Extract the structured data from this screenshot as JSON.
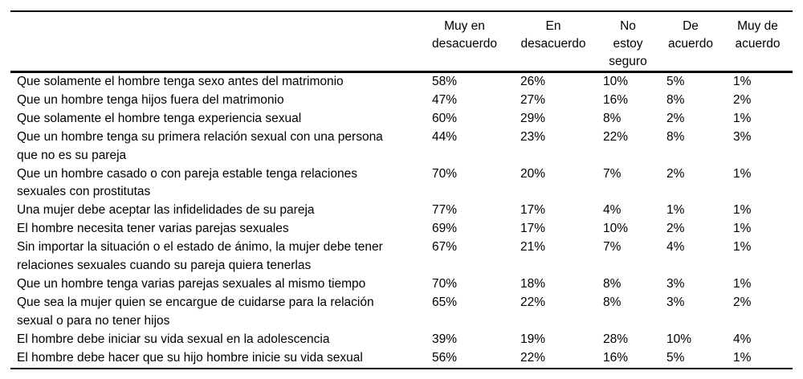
{
  "table": {
    "columns": [
      "Muy en\ndesacuerdo",
      "En\ndesacuerdo",
      "No\nestoy\nseguro",
      "De\nacuerdo",
      "Muy de\nacuerdo"
    ],
    "rows": [
      {
        "label": "Que solamente el hombre tenga sexo antes del matrimonio",
        "values": [
          "58%",
          "26%",
          "10%",
          "5%",
          "1%"
        ]
      },
      {
        "label": "Que un hombre tenga hijos fuera del matrimonio",
        "values": [
          "47%",
          "27%",
          "16%",
          "8%",
          "2%"
        ]
      },
      {
        "label": "Que solamente el hombre tenga experiencia sexual",
        "values": [
          "60%",
          "29%",
          "8%",
          "2%",
          "1%"
        ]
      },
      {
        "label": "Que un hombre tenga su primera relación sexual con una persona\nque no es su pareja",
        "values": [
          "44%",
          "23%",
          "22%",
          "8%",
          "3%"
        ]
      },
      {
        "label": "Que un hombre casado o con pareja estable tenga relaciones\nsexuales con prostitutas",
        "values": [
          "70%",
          "20%",
          "7%",
          "2%",
          "1%"
        ]
      },
      {
        "label": "Una mujer debe aceptar las infidelidades de su pareja",
        "values": [
          "77%",
          "17%",
          "4%",
          "1%",
          "1%"
        ]
      },
      {
        "label": "El hombre necesita tener varias parejas sexuales",
        "values": [
          "69%",
          "17%",
          "10%",
          "2%",
          "1%"
        ]
      },
      {
        "label": "Sin importar la situación o el estado de ánimo, la mujer debe tener\nrelaciones sexuales cuando su pareja quiera tenerlas",
        "values": [
          "67%",
          "21%",
          "7%",
          "4%",
          "1%"
        ]
      },
      {
        "label": "Que un hombre tenga varias parejas sexuales al mismo tiempo",
        "values": [
          "70%",
          "18%",
          "8%",
          "3%",
          "1%"
        ]
      },
      {
        "label": "Que sea la mujer quien se encargue de cuidarse para la relación\nsexual o para no tener hijos",
        "values": [
          "65%",
          "22%",
          "8%",
          "3%",
          "2%"
        ]
      },
      {
        "label": "El hombre debe iniciar su vida sexual en la adolescencia",
        "values": [
          "39%",
          "19%",
          "28%",
          "10%",
          "4%"
        ]
      },
      {
        "label": "El hombre debe hacer que su hijo hombre inicie su vida sexual",
        "values": [
          "56%",
          "22%",
          "16%",
          "5%",
          "1%"
        ]
      }
    ]
  },
  "colors": {
    "text": "#000000",
    "rule": "#000000",
    "background": "#ffffff"
  }
}
